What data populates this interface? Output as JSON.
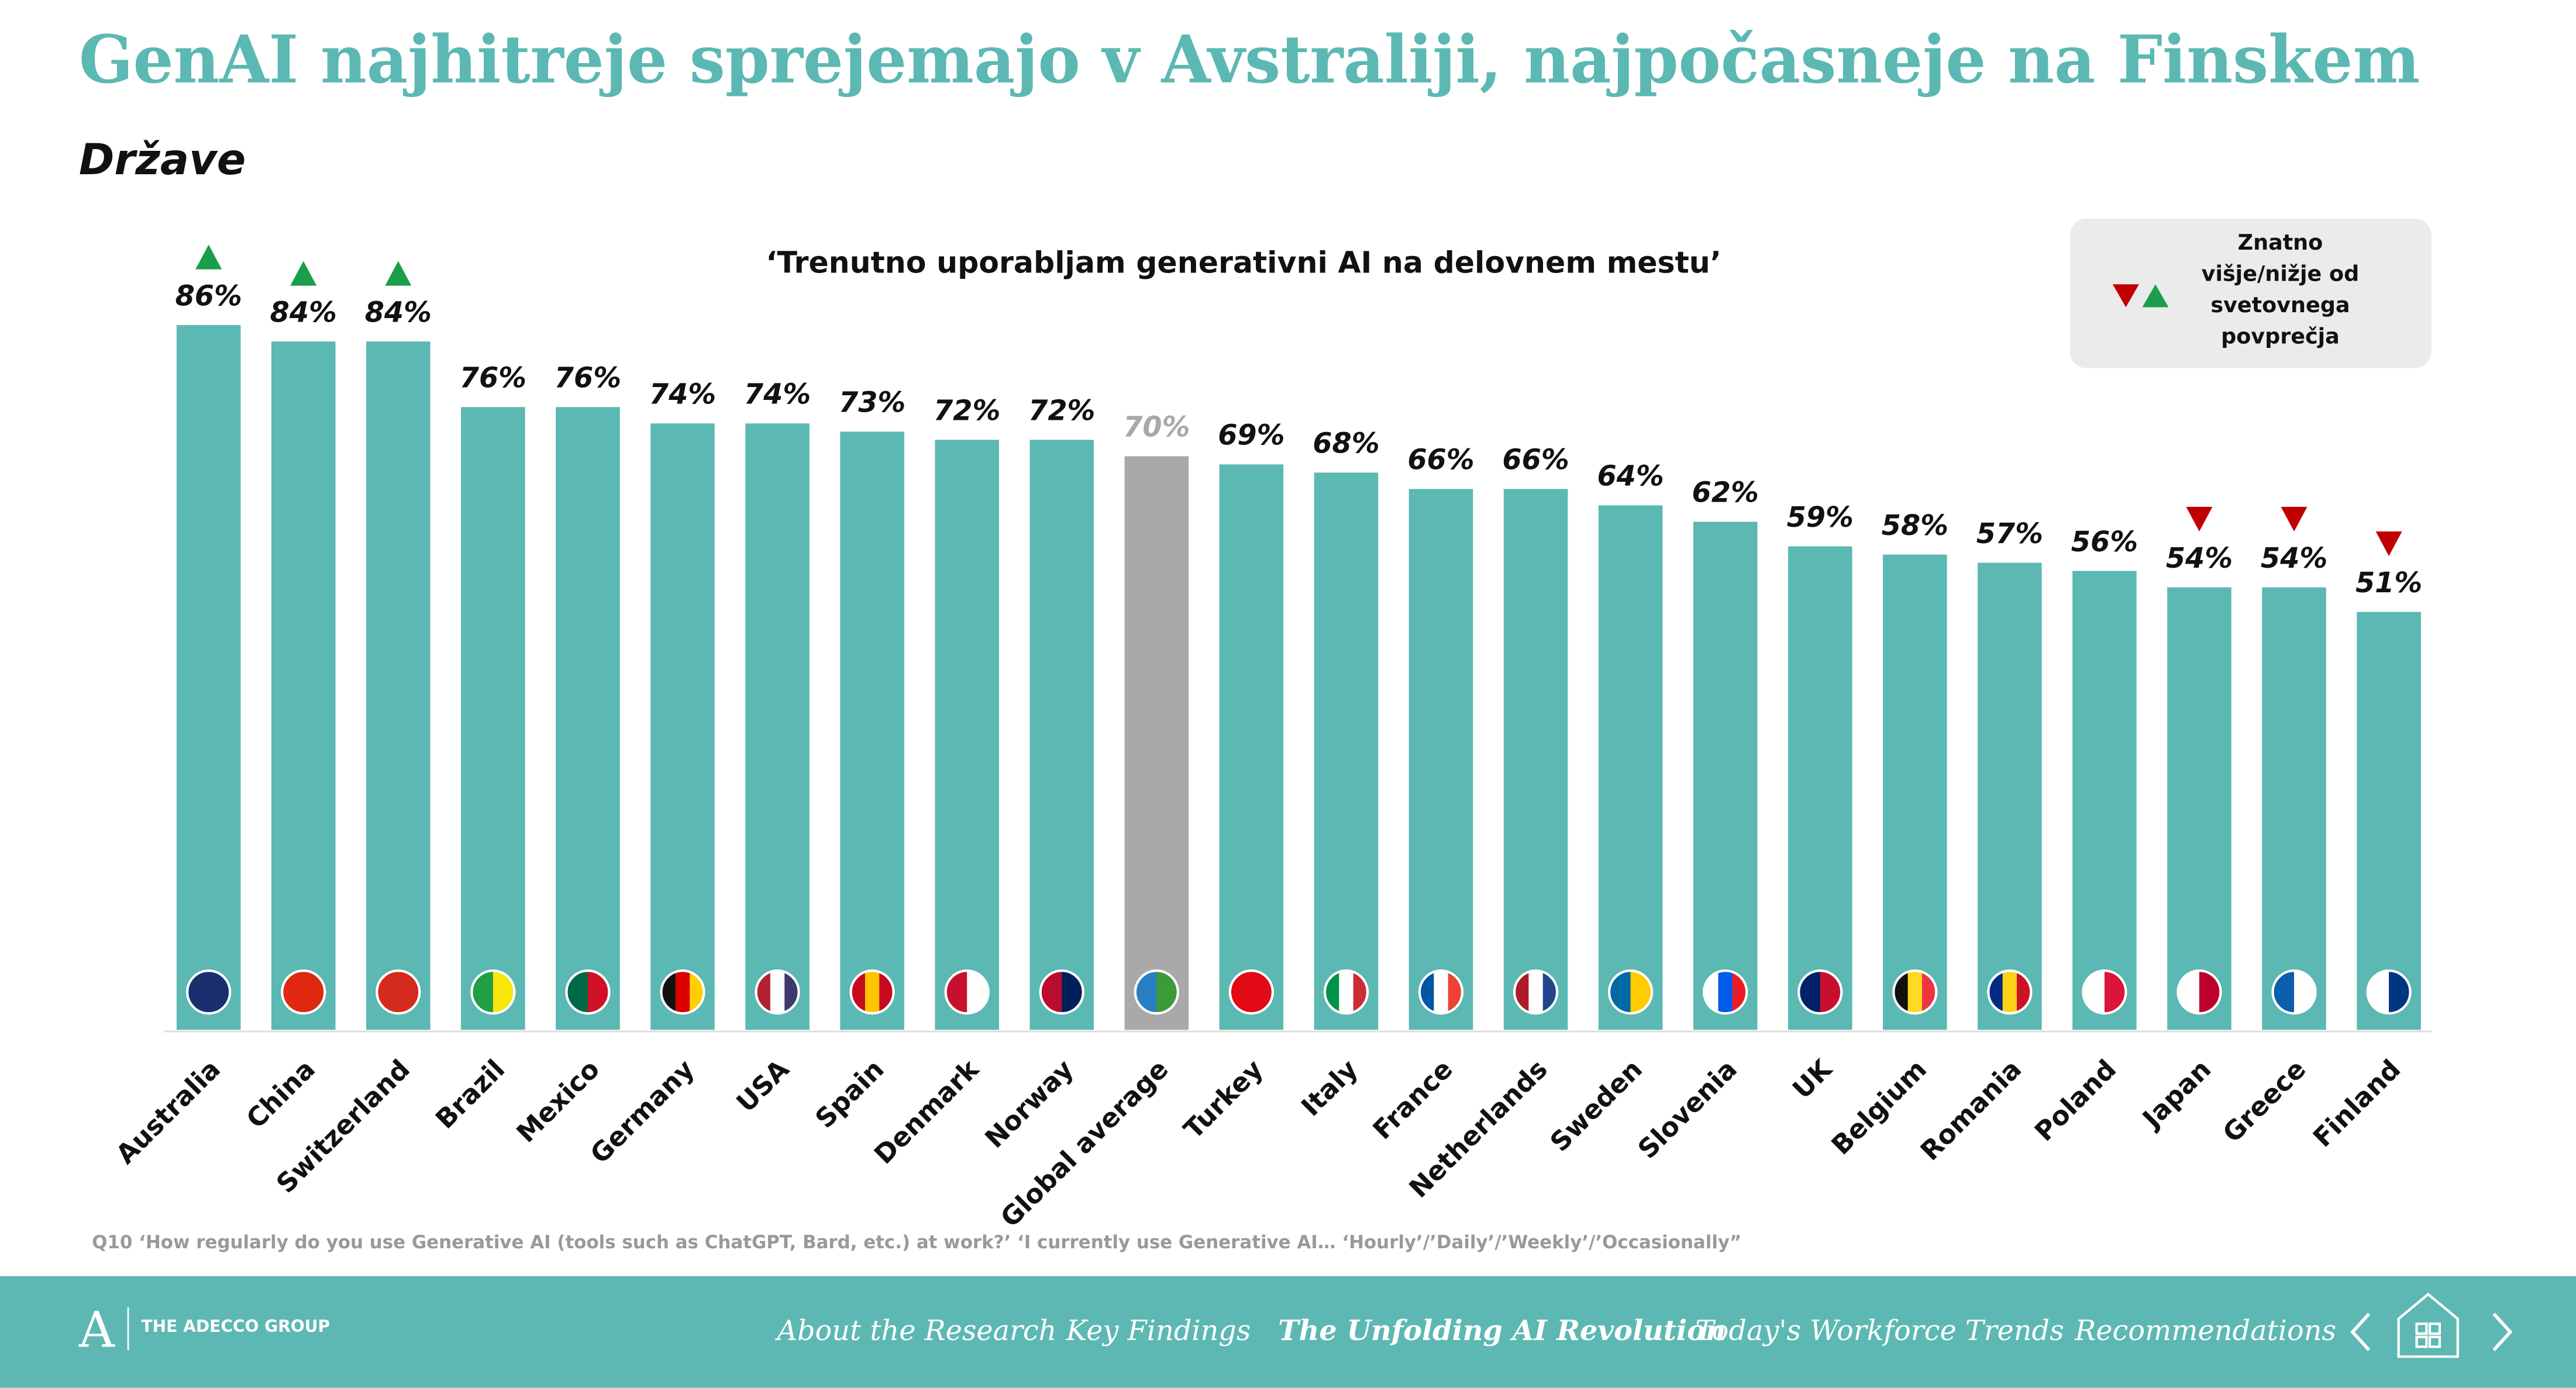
{
  "header": {
    "title": "GenAI najhitreje sprejemajo v Avstraliji, najpočasneje na Finskem",
    "subtitle": "Države"
  },
  "chart_data": {
    "type": "bar",
    "title": "‘Trenutno uporabljam generativni AI na delovnem mestu’",
    "categories": [
      "Australia",
      "China",
      "Switzerland",
      "Brazil",
      "Mexico",
      "Germany",
      "USA",
      "Spain",
      "Denmark",
      "Norway",
      "Global average",
      "Turkey",
      "Italy",
      "France",
      "Netherlands",
      "Sweden",
      "Slovenia",
      "UK",
      "Belgium",
      "Romania",
      "Poland",
      "Japan",
      "Greece",
      "Finland"
    ],
    "values": [
      86,
      84,
      84,
      76,
      76,
      74,
      74,
      73,
      72,
      72,
      70,
      69,
      68,
      66,
      66,
      64,
      62,
      59,
      58,
      57,
      56,
      54,
      54,
      51
    ],
    "value_labels": [
      "86%",
      "84%",
      "84%",
      "76%",
      "76%",
      "74%",
      "74%",
      "73%",
      "72%",
      "72%",
      "70%",
      "69%",
      "68%",
      "66%",
      "66%",
      "64%",
      "62%",
      "59%",
      "58%",
      "57%",
      "56%",
      "54%",
      "54%",
      "51%"
    ],
    "color": "#5bb8b2",
    "highlight_color": "#aaa8a8",
    "colors": [
      "#5bb8b2",
      "#5bb8b2",
      "#5bb8b2",
      "#5bb8b2",
      "#5bb8b2",
      "#5bb8b2",
      "#5bb8b2",
      "#5bb8b2",
      "#5bb8b2",
      "#5bb8b2",
      "#aaa8a8",
      "#5bb8b2",
      "#5bb8b2",
      "#5bb8b2",
      "#5bb8b2",
      "#5bb8b2",
      "#5bb8b2",
      "#5bb8b2",
      "#5bb8b2",
      "#5bb8b2",
      "#5bb8b2",
      "#5bb8b2",
      "#5bb8b2",
      "#5bb8b2"
    ],
    "significance": [
      "up",
      "up",
      "up",
      null,
      null,
      null,
      null,
      null,
      null,
      null,
      null,
      null,
      null,
      null,
      null,
      null,
      null,
      null,
      null,
      null,
      null,
      "down",
      "down",
      "down"
    ],
    "significance_colors": {
      "up": "#1a9e4a",
      "down": "#c00000"
    },
    "ylim": [
      0,
      100
    ],
    "legend": {
      "lines": [
        "Znatno",
        "višje/nižje od",
        "svetovnega",
        "povprečja"
      ],
      "corner": "top-right"
    },
    "footnote": "Q10 ‘How regularly do you use Generative AI (tools such as ChatGPT, Bard, etc.) at work?’ ‘I currently use Generative AI… ‘Hourly’/’Daily’/’Weekly’/’Occasionally”"
  },
  "footer": {
    "brand": "THE ADECCO GROUP",
    "nav": [
      "About the Research",
      "Key Findings",
      "The Unfolding AI Revolution",
      "Today's Workforce Trends",
      "Recommendations"
    ],
    "active": 2
  }
}
